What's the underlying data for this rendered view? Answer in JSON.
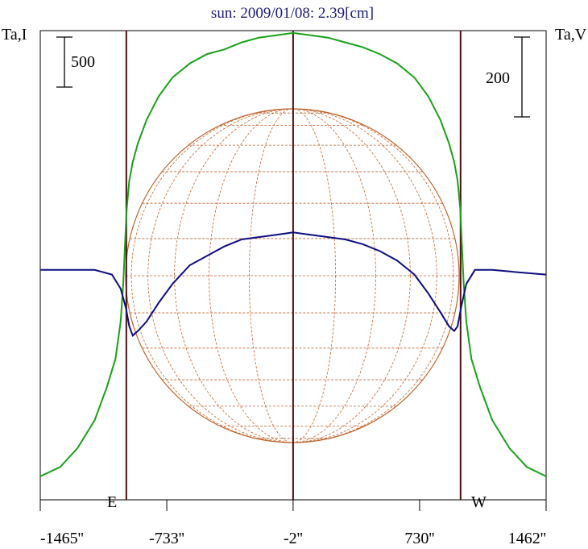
{
  "chart_data": {
    "type": "line",
    "title": "sun: 2009/01/08: 2.39[cm]",
    "left_axis_label": "Ta,I",
    "right_axis_label": "Ta,V",
    "left_scale_bar_label": "500",
    "right_scale_bar_label": "200",
    "east_label": "E",
    "west_label": "W",
    "x_tick_labels": [
      "-1465''",
      "-733''",
      "-2''",
      "730''",
      "1462''"
    ],
    "x_ticks": [
      -1465,
      -733,
      -2,
      730,
      1462
    ],
    "xlim": [
      -1465,
      1462
    ],
    "vertical_lines_x": [
      -967,
      -2,
      967
    ],
    "grid": false,
    "colors": {
      "intensity": "#1aa01a",
      "polarization": "#0d0d80",
      "limb_lines": "#4a0f0f",
      "sun_grid": "#c0622a",
      "title": "#1a1a7a"
    },
    "series": [
      {
        "name": "I",
        "x": [
          -1465,
          -1350,
          -1250,
          -1150,
          -1080,
          -1030,
          -1000,
          -985,
          -975,
          -965,
          -950,
          -930,
          -900,
          -850,
          -780,
          -700,
          -600,
          -500,
          -400,
          -300,
          -200,
          -100,
          -2,
          100,
          200,
          300,
          400,
          500,
          600,
          700,
          780,
          850,
          900,
          930,
          950,
          965,
          975,
          985,
          1000,
          1030,
          1080,
          1150,
          1250,
          1350,
          1462
        ],
        "y": [
          0.05,
          0.07,
          0.11,
          0.17,
          0.24,
          0.3,
          0.38,
          0.46,
          0.54,
          0.62,
          0.68,
          0.72,
          0.76,
          0.81,
          0.86,
          0.9,
          0.93,
          0.95,
          0.96,
          0.975,
          0.985,
          0.99,
          0.995,
          0.99,
          0.985,
          0.975,
          0.965,
          0.95,
          0.93,
          0.9,
          0.86,
          0.81,
          0.76,
          0.72,
          0.68,
          0.62,
          0.54,
          0.46,
          0.38,
          0.3,
          0.24,
          0.17,
          0.11,
          0.07,
          0.05
        ]
      },
      {
        "name": "V",
        "x": [
          -1465,
          -1300,
          -1150,
          -1050,
          -1000,
          -970,
          -950,
          -930,
          -900,
          -850,
          -780,
          -700,
          -600,
          -500,
          -400,
          -300,
          -200,
          -100,
          -2,
          100,
          200,
          300,
          400,
          500,
          600,
          700,
          780,
          850,
          900,
          930,
          950,
          970,
          1000,
          1050,
          1150,
          1300,
          1462
        ],
        "y": [
          0.49,
          0.49,
          0.49,
          0.48,
          0.45,
          0.41,
          0.37,
          0.35,
          0.36,
          0.38,
          0.42,
          0.46,
          0.5,
          0.52,
          0.54,
          0.555,
          0.56,
          0.565,
          0.57,
          0.565,
          0.56,
          0.555,
          0.545,
          0.53,
          0.51,
          0.48,
          0.44,
          0.4,
          0.37,
          0.36,
          0.37,
          0.41,
          0.46,
          0.49,
          0.49,
          0.485,
          0.48
        ]
      }
    ]
  }
}
